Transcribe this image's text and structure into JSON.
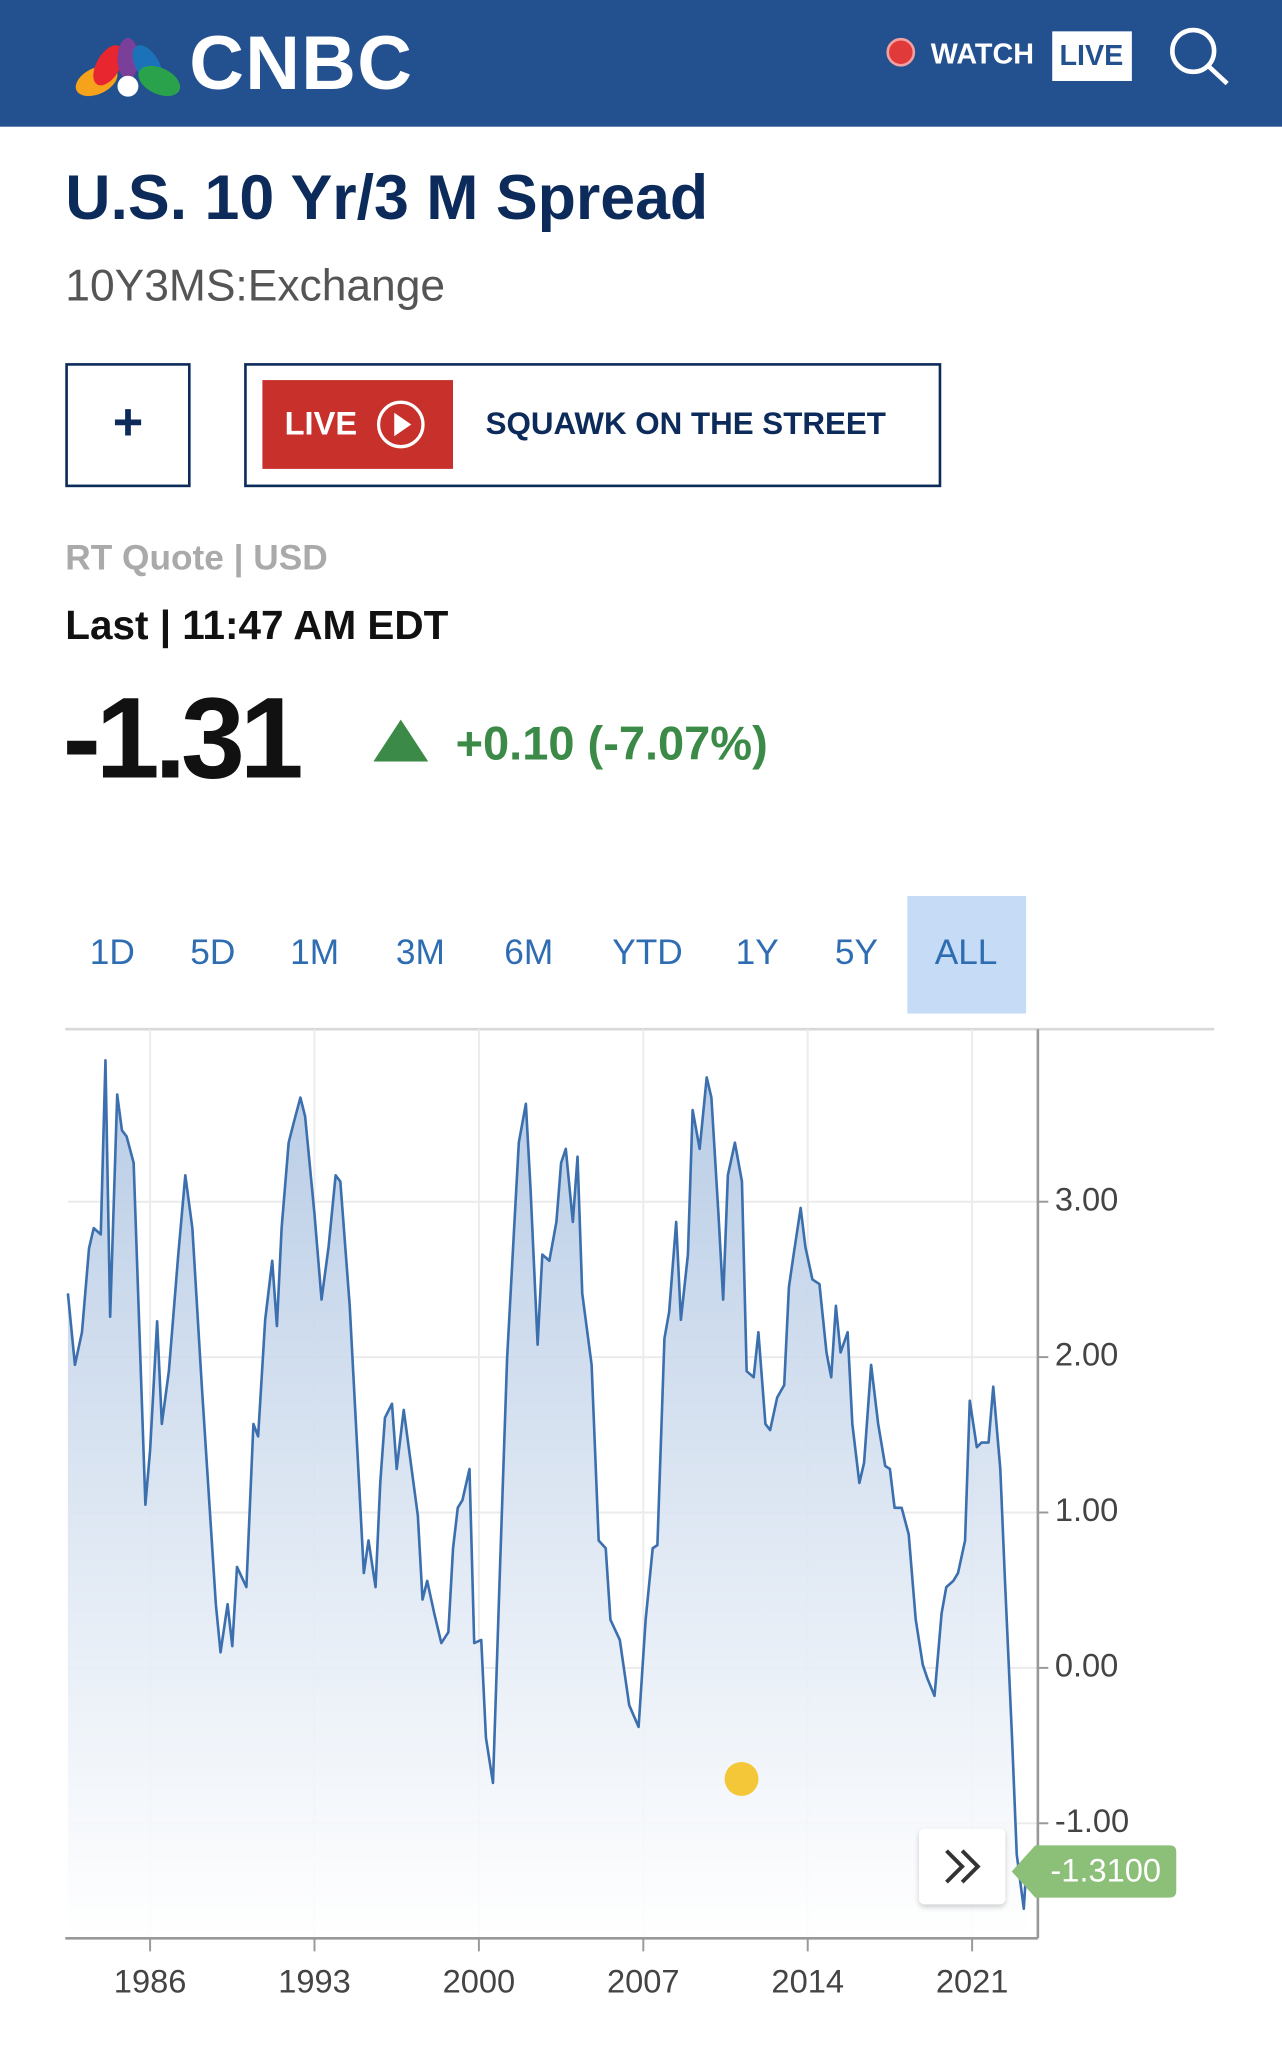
{
  "header": {
    "logo": "CNBC",
    "watch": "WATCH",
    "live": "LIVE"
  },
  "quote": {
    "name": "U.S. 10 Yr/3 M Spread",
    "symbol": "10Y3MS:Exchange",
    "add_button": "+",
    "live_badge": "LIVE",
    "show": "SQUAWK ON THE STREET",
    "quote_type": "RT Quote | USD",
    "last_time": "Last | 11:47 AM EDT",
    "price": "-1.31",
    "change": "+0.10 (-7.07%)"
  },
  "ranges": [
    "1D",
    "5D",
    "1M",
    "3M",
    "6M",
    "YTD",
    "1Y",
    "5Y",
    "ALL"
  ],
  "active_range": 8,
  "chart_data": {
    "type": "area",
    "color": "#3b6fae",
    "grid": true,
    "xlim": [
      1982.5,
      2023.8
    ],
    "ylim": [
      -1.74,
      4.11
    ],
    "xticks": [
      1986,
      1993,
      2000,
      2007,
      2014,
      2021
    ],
    "yticks": [
      {
        "value": 3,
        "label": "3.00"
      },
      {
        "value": 2,
        "label": "2.00"
      },
      {
        "value": 1,
        "label": "1.00"
      },
      {
        "value": 0,
        "label": "0.00"
      },
      {
        "value": -1,
        "label": "-1.00"
      }
    ],
    "last_value": {
      "value": -1.31,
      "label": "-1.3100"
    },
    "x": [
      1982.5,
      1982.8,
      1983.1,
      1983.4,
      1983.6,
      1983.9,
      1984.1,
      1984.3,
      1984.6,
      1984.8,
      1985.0,
      1985.3,
      1985.8,
      1986.0,
      1986.3,
      1986.5,
      1986.8,
      1987.2,
      1987.5,
      1987.8,
      1988.2,
      1988.8,
      1989.0,
      1989.3,
      1989.5,
      1989.7,
      1990.1,
      1990.4,
      1990.6,
      1990.9,
      1991.2,
      1991.4,
      1991.6,
      1991.9,
      1992.1,
      1992.4,
      1992.6,
      1993.0,
      1993.3,
      1993.6,
      1993.9,
      1994.1,
      1994.5,
      1995.1,
      1995.3,
      1995.6,
      1995.8,
      1996.0,
      1996.3,
      1996.5,
      1996.8,
      1997.1,
      1997.4,
      1997.6,
      1997.8,
      1998.1,
      1998.4,
      1998.7,
      1998.9,
      1999.1,
      1999.3,
      1999.6,
      1999.8,
      2000.1,
      2000.3,
      2000.6,
      2000.9,
      2001.2,
      2001.5,
      2001.7,
      2002.0,
      2002.2,
      2002.5,
      2002.7,
      2003.0,
      2003.3,
      2003.5,
      2003.7,
      2004.0,
      2004.2,
      2004.4,
      2004.8,
      2005.1,
      2005.4,
      2005.6,
      2006.0,
      2006.4,
      2006.8,
      2007.1,
      2007.4,
      2007.6,
      2007.9,
      2008.1,
      2008.4,
      2008.6,
      2008.9,
      2009.1,
      2009.4,
      2009.7,
      2009.9,
      2010.2,
      2010.4,
      2010.6,
      2010.9,
      2011.2,
      2011.4,
      2011.7,
      2011.9,
      2012.2,
      2012.4,
      2012.7,
      2013.0,
      2013.2,
      2013.4,
      2013.7,
      2013.9,
      2014.2,
      2014.5,
      2014.8,
      2015.0,
      2015.2,
      2015.4,
      2015.7,
      2015.9,
      2016.2,
      2016.4,
      2016.7,
      2017.0,
      2017.3,
      2017.5,
      2017.7,
      2018.0,
      2018.3,
      2018.6,
      2018.9,
      2019.1,
      2019.4,
      2019.7,
      2019.9,
      2020.2,
      2020.4,
      2020.7,
      2020.9,
      2021.2,
      2021.4,
      2021.7,
      2021.9,
      2022.2,
      2022.4,
      2022.7,
      2022.9,
      2023.2,
      2023.3
    ],
    "values": [
      2.41,
      1.95,
      2.16,
      2.7,
      2.83,
      2.79,
      3.91,
      2.26,
      3.69,
      3.46,
      3.42,
      3.25,
      1.05,
      1.4,
      2.23,
      1.57,
      1.91,
      2.66,
      3.17,
      2.83,
      1.82,
      0.41,
      0.1,
      0.41,
      0.14,
      0.65,
      0.52,
      1.57,
      1.49,
      2.24,
      2.62,
      2.2,
      2.83,
      3.38,
      3.5,
      3.67,
      3.55,
      2.92,
      2.37,
      2.71,
      3.17,
      3.13,
      2.33,
      0.61,
      0.82,
      0.52,
      1.19,
      1.61,
      1.7,
      1.28,
      1.66,
      1.32,
      0.98,
      0.44,
      0.56,
      0.35,
      0.16,
      0.23,
      0.77,
      1.03,
      1.08,
      1.28,
      0.16,
      0.18,
      -0.45,
      -0.74,
      0.65,
      1.99,
      2.83,
      3.38,
      3.63,
      3.08,
      2.08,
      2.66,
      2.62,
      2.87,
      3.25,
      3.34,
      2.87,
      3.29,
      2.41,
      1.95,
      0.82,
      0.77,
      0.31,
      0.18,
      -0.24,
      -0.38,
      0.31,
      0.77,
      0.79,
      2.12,
      2.29,
      2.87,
      2.24,
      2.66,
      3.59,
      3.34,
      3.8,
      3.67,
      2.92,
      2.37,
      3.17,
      3.38,
      3.13,
      1.91,
      1.87,
      2.16,
      1.57,
      1.53,
      1.74,
      1.82,
      2.45,
      2.66,
      2.96,
      2.71,
      2.5,
      2.47,
      2.03,
      1.87,
      2.33,
      2.03,
      2.16,
      1.57,
      1.19,
      1.32,
      1.95,
      1.57,
      1.3,
      1.28,
      1.03,
      1.03,
      0.86,
      0.31,
      0.02,
      -0.07,
      -0.18,
      0.35,
      0.52,
      0.56,
      0.61,
      0.82,
      1.72,
      1.42,
      1.45,
      1.45,
      1.81,
      1.28,
      0.56,
      -0.45,
      -1.2,
      -1.55,
      -1.31
    ]
  }
}
